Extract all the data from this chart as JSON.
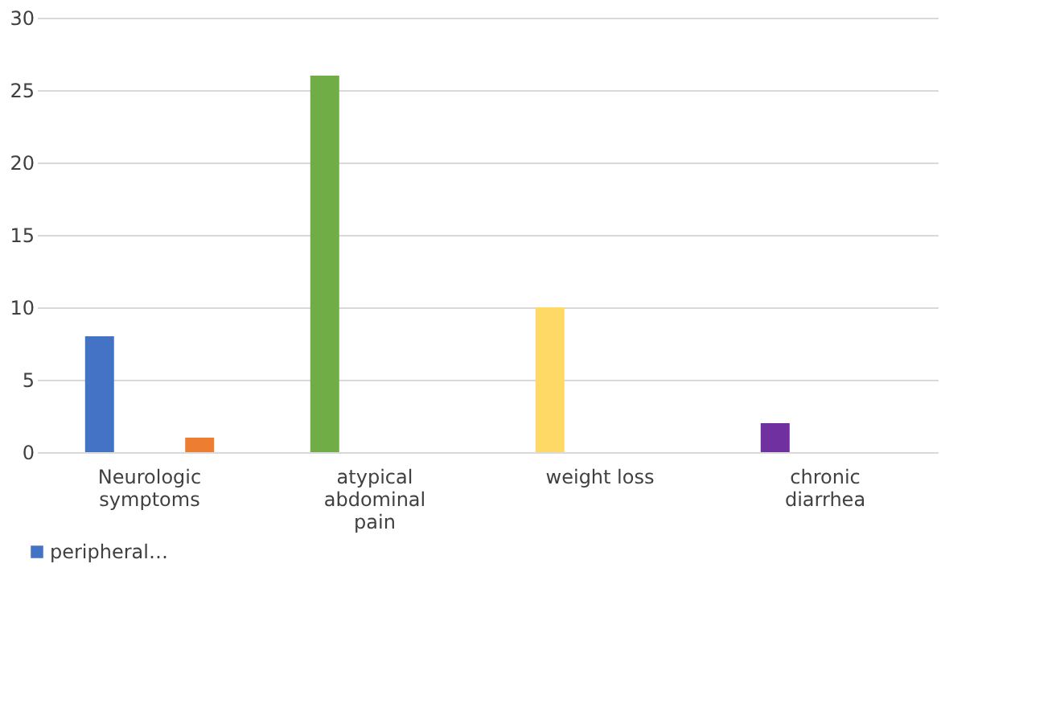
{
  "chart_data": {
    "type": "bar",
    "categories": [
      "Neurologic symptoms",
      "atypical abdominal pain",
      "weight loss",
      "chronic diarrhea"
    ],
    "series": [
      {
        "name": "peripheral…",
        "colors": [
          "#4472c4",
          "#70ad47",
          "#ffd966",
          "#7030a0"
        ],
        "values": [
          8,
          26,
          10,
          2
        ]
      },
      {
        "color": "#ed7d31",
        "values": [
          1,
          null,
          null,
          null
        ]
      }
    ],
    "ylim": [
      0,
      30
    ],
    "yticks": [
      0,
      5,
      10,
      15,
      20,
      25,
      30
    ],
    "grid": "y",
    "legend": "bottom left"
  }
}
